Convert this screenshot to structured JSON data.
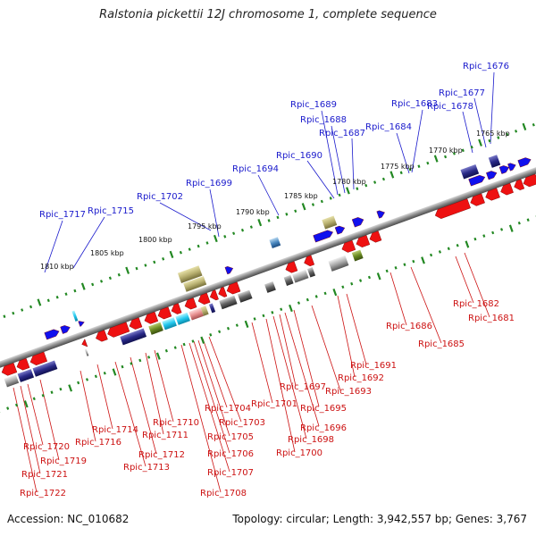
{
  "title": "Ralstonia pickettii 12J chromosome 1, complete sequence",
  "accession": "Accession: NC_010682",
  "summary": "Topology: circular; Length: 3,942,557 bp; Genes: 3,767",
  "scale_labels": [
    "1765 kbp",
    "1770 kbp",
    "1775 kbp",
    "1780 kbp",
    "1785 kbp",
    "1790 kbp",
    "1795 kbp",
    "1800 kbp",
    "1805 kbp",
    "1810 kbp"
  ],
  "top_genes": [
    "Rpic_1676",
    "Rpic_1677",
    "Rpic_1678",
    "Rpic_1683",
    "Rpic_1684",
    "Rpic_1687",
    "Rpic_1688",
    "Rpic_1689",
    "Rpic_1690",
    "Rpic_1694",
    "Rpic_1699",
    "Rpic_1702",
    "Rpic_1715",
    "Rpic_1717"
  ],
  "bottom_genes": [
    "Rpic_1681",
    "Rpic_1682",
    "Rpic_1685",
    "Rpic_1686",
    "Rpic_1691",
    "Rpic_1692",
    "Rpic_1693",
    "Rpic_1695",
    "Rpic_1696",
    "Rpic_1697",
    "Rpic_1698",
    "Rpic_1700",
    "Rpic_1701",
    "Rpic_1703",
    "Rpic_1704",
    "Rpic_1705",
    "Rpic_1706",
    "Rpic_1707",
    "Rpic_1708",
    "Rpic_1710",
    "Rpic_1711",
    "Rpic_1712",
    "Rpic_1713",
    "Rpic_1714",
    "Rpic_1716",
    "Rpic_1719",
    "Rpic_1720",
    "Rpic_1721",
    "Rpic_1722"
  ],
  "colors": {
    "forward_gene": "#1010ee",
    "reverse_gene": "#ee1111",
    "scale_ticks": "#228822",
    "backbone": "#8c8c8c",
    "top_label": "#1a1acc",
    "bottom_label": "#cc1111"
  }
}
